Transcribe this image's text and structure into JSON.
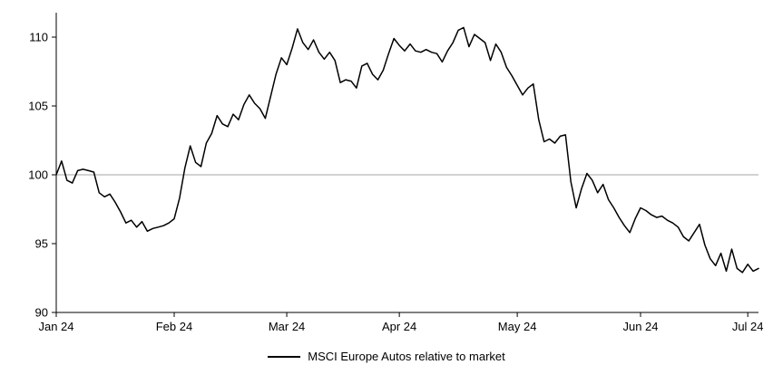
{
  "chart_data": {
    "type": "line",
    "title": "",
    "xlabel": "",
    "ylabel": "",
    "ylim": [
      90,
      110
    ],
    "y_ticks": [
      90,
      95,
      100,
      105,
      110
    ],
    "x_tick_labels": [
      "Jan 24",
      "Feb 24",
      "Mar 24",
      "Apr 24",
      "May 24",
      "Jun 24",
      "Jul 24"
    ],
    "x_tick_indices": [
      0,
      22,
      43,
      64,
      86,
      109,
      129
    ],
    "reference_line": 100,
    "grid": "single horizontal reference line at 100",
    "legend_position": "bottom-center",
    "line_color": "#000000",
    "axis_color": "#000000",
    "gridline_color": "#a6a6a6",
    "series": [
      {
        "name": "MSCI Europe Autos relative to market",
        "values": [
          100.0,
          101.0,
          99.6,
          99.4,
          100.3,
          100.4,
          100.3,
          100.2,
          98.7,
          98.4,
          98.6,
          98.0,
          97.3,
          96.5,
          96.7,
          96.2,
          96.6,
          95.9,
          96.1,
          96.2,
          96.3,
          96.5,
          96.8,
          98.3,
          100.5,
          102.1,
          100.9,
          100.6,
          102.3,
          103.0,
          104.3,
          103.7,
          103.5,
          104.4,
          104.0,
          105.1,
          105.8,
          105.2,
          104.8,
          104.1,
          105.7,
          107.3,
          108.5,
          108.0,
          109.2,
          110.6,
          109.6,
          109.1,
          109.8,
          108.9,
          108.4,
          108.9,
          108.3,
          106.7,
          106.9,
          106.8,
          106.3,
          107.9,
          108.1,
          107.3,
          106.9,
          107.6,
          108.8,
          109.9,
          109.4,
          109.0,
          109.5,
          109.0,
          108.9,
          109.1,
          108.9,
          108.8,
          108.2,
          109.0,
          109.6,
          110.5,
          110.7,
          109.3,
          110.2,
          109.9,
          109.6,
          108.3,
          109.5,
          108.9,
          107.8,
          107.2,
          106.5,
          105.8,
          106.3,
          106.6,
          104.0,
          102.4,
          102.6,
          102.3,
          102.8,
          102.9,
          99.5,
          97.6,
          99.0,
          100.1,
          99.6,
          98.7,
          99.3,
          98.2,
          97.6,
          96.9,
          96.3,
          95.8,
          96.8,
          97.6,
          97.4,
          97.1,
          96.9,
          97.0,
          96.7,
          96.5,
          96.2,
          95.5,
          95.2,
          95.8,
          96.4,
          94.9,
          93.9,
          93.4,
          94.3,
          93.0,
          94.6,
          93.2,
          92.9,
          93.5,
          93.0,
          93.2
        ]
      }
    ]
  }
}
